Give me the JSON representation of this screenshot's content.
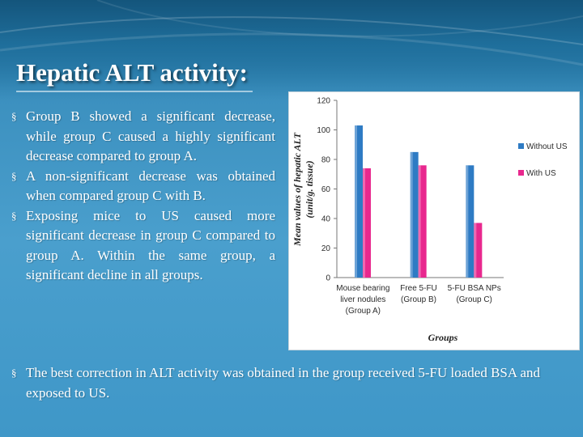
{
  "slide": {
    "title": "Hepatic ALT activity:",
    "bullets": [
      "Group B showed a significant decrease, while group C caused a highly significant decrease compared to group A.",
      "A non-significant decrease was obtained when compared group C with B.",
      "Exposing mice to US caused more significant decrease in group C compared to group A. Within the same group, a significant decline in all groups."
    ],
    "bottom_bullet": "The best correction in ALT activity was obtained in the group received 5-FU loaded BSA and exposed to US.",
    "bullet_symbol": "§"
  },
  "chart_data": {
    "type": "bar",
    "categories": [
      [
        "Mouse bearing",
        "liver nodules",
        "(Group A)"
      ],
      [
        "Free 5-FU",
        "(Group B)"
      ],
      [
        "5-FU BSA NPs",
        "(Group C)"
      ]
    ],
    "series": [
      {
        "name": "Without US",
        "values": [
          103,
          85,
          76
        ],
        "color": "#2e7bc4"
      },
      {
        "name": "With US",
        "values": [
          74,
          76,
          37
        ],
        "color": "#e8288e"
      }
    ],
    "ylabel_lines": [
      "Mean values of hepatic ALT",
      "(unit/g. tissue)"
    ],
    "xlabel": "Groups",
    "ylim": [
      0,
      120
    ],
    "yticks": [
      0,
      20,
      40,
      60,
      80,
      100,
      120
    ],
    "legend_position": "right",
    "grid": false
  }
}
